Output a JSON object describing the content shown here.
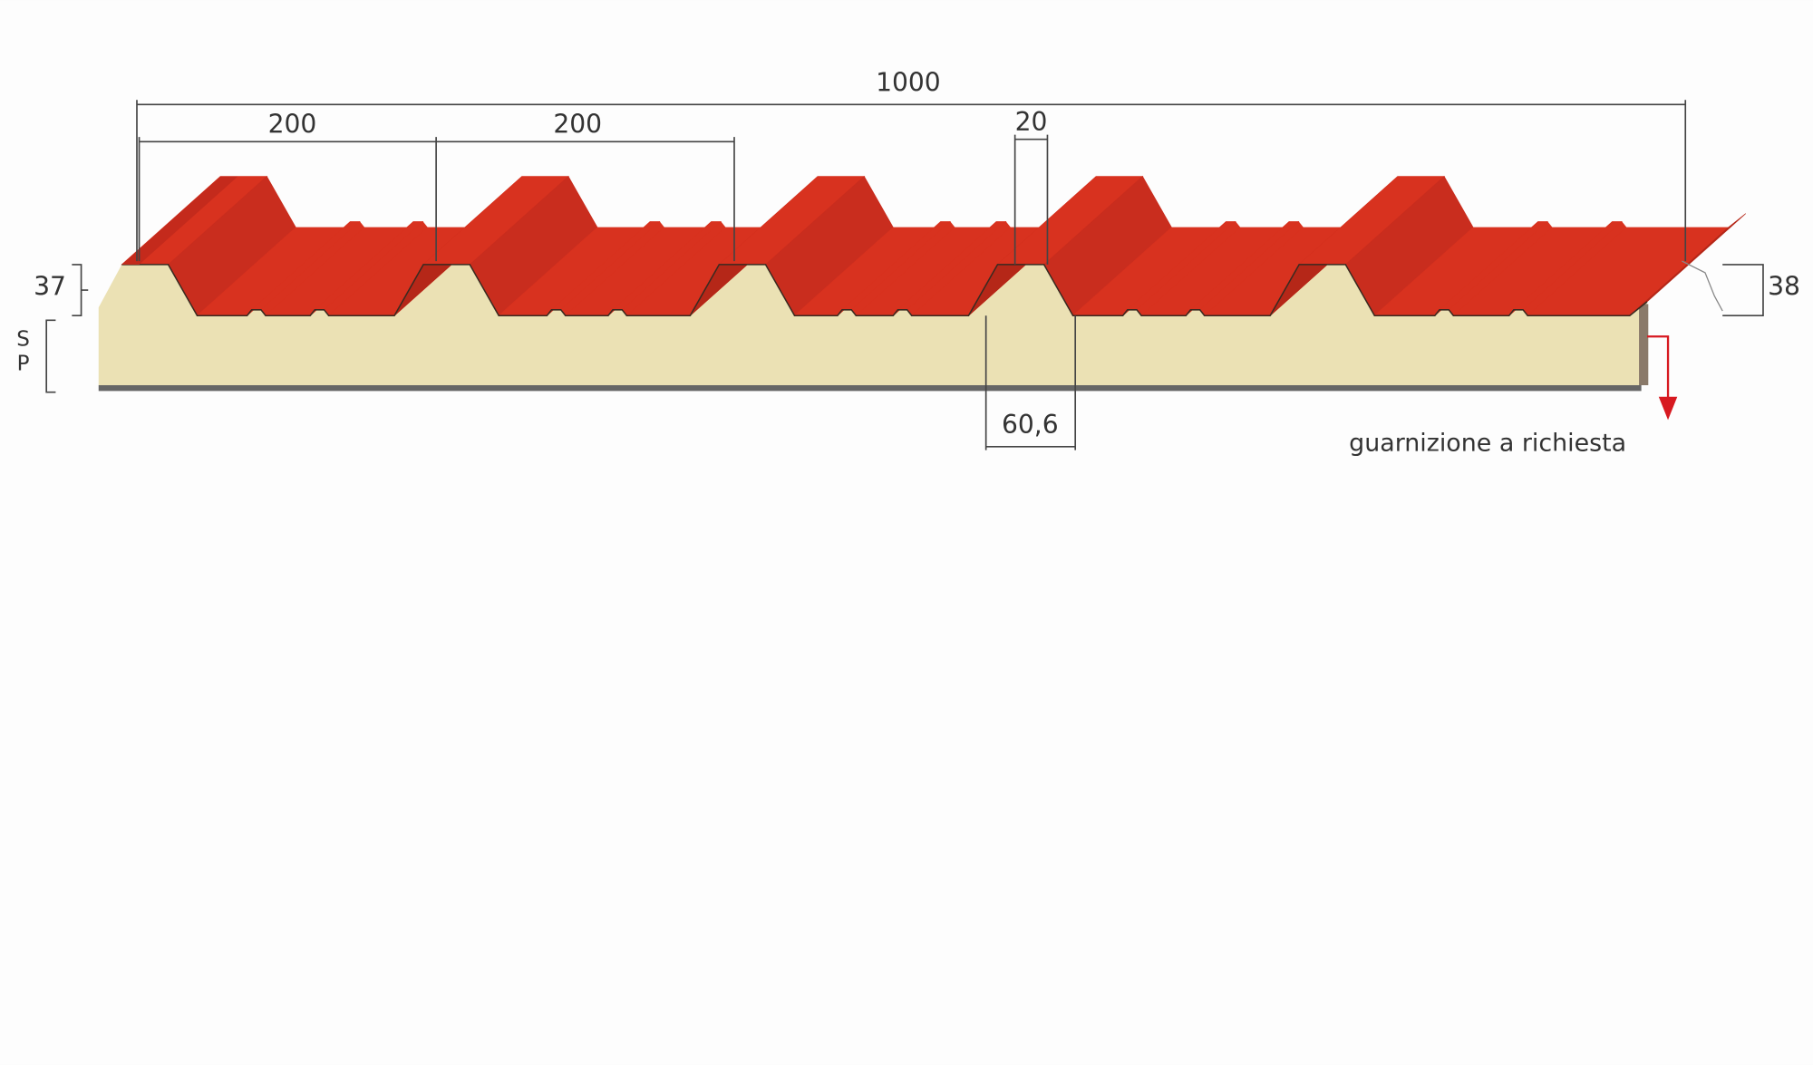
{
  "dimensions": {
    "total_width": "1000",
    "rib_pitch_1": "200",
    "rib_pitch_2": "200",
    "rib_top": "20",
    "rib_height_left": "37",
    "rib_height_right": "38",
    "thickness": [
      "S",
      "P"
    ],
    "rib_base": "60,6"
  },
  "note": "guarnizione a richiesta"
}
